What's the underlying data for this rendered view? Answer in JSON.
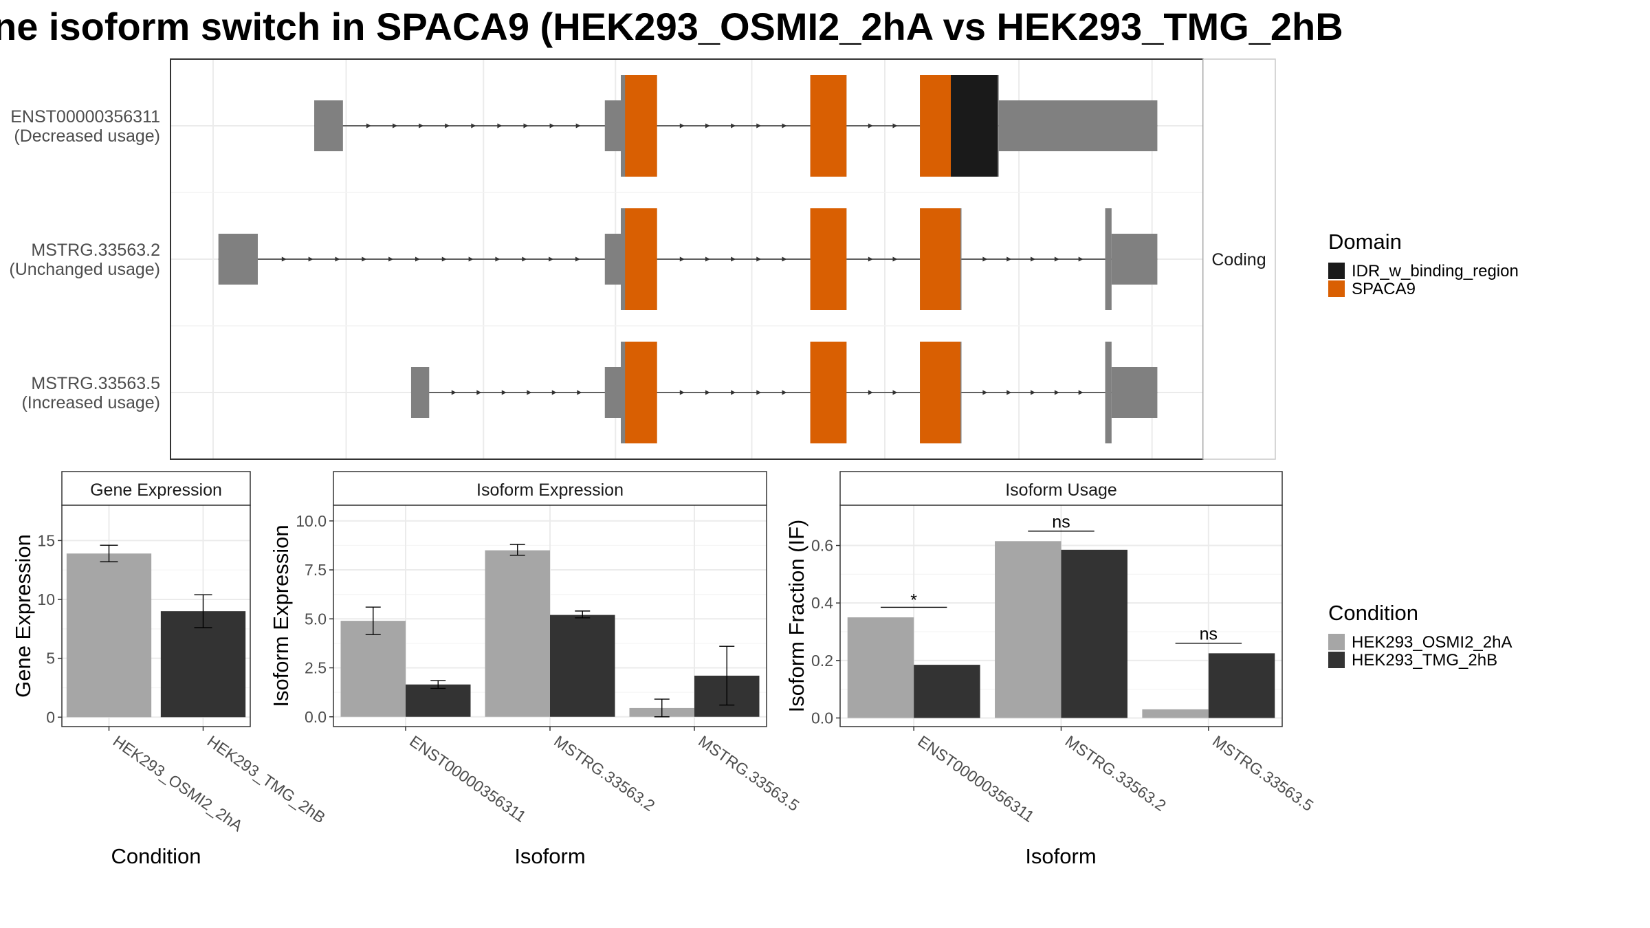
{
  "title": "ne isoform switch in SPACA9 (HEK293_OSMI2_2hA vs HEK293_TMG_2hB",
  "colors": {
    "utr": "#808080",
    "orf": "#808080",
    "spaca9": "#D95F02",
    "idr": "#1A1A1A",
    "cond_a": "#A6A6A6",
    "cond_b": "#333333",
    "intron": "#333333",
    "grid": "#ebebeb",
    "panel_border": "#333333"
  },
  "transcript_panel": {
    "strip_label": "Coding",
    "transcripts": [
      {
        "id": "ENST00000356311",
        "usage": "(Decreased usage)",
        "utr_exons": [
          [
            295,
            322
          ],
          [
            568,
            583
          ],
          [
            938,
            1087
          ]
        ],
        "cds_exons": [
          [
            583,
            617
          ],
          [
            761,
            795
          ],
          [
            864,
            938
          ]
        ],
        "domains": [
          {
            "domain": "SPACA9",
            "start": 587,
            "end": 617
          },
          {
            "domain": "SPACA9",
            "start": 761,
            "end": 795
          },
          {
            "domain": "SPACA9",
            "start": 864,
            "end": 893
          },
          {
            "domain": "IDR_w_binding_region",
            "start": 893,
            "end": 937
          }
        ]
      },
      {
        "id": "MSTRG.33563.2",
        "usage": "(Unchanged usage)",
        "utr_exons": [
          [
            205,
            242
          ],
          [
            568,
            583
          ],
          [
            1044,
            1087
          ]
        ],
        "cds_exons": [
          [
            583,
            617
          ],
          [
            761,
            795
          ],
          [
            864,
            903
          ],
          [
            1038,
            1044
          ]
        ],
        "domains": [
          {
            "domain": "SPACA9",
            "start": 587,
            "end": 617
          },
          {
            "domain": "SPACA9",
            "start": 761,
            "end": 795
          },
          {
            "domain": "SPACA9",
            "start": 864,
            "end": 902
          }
        ]
      },
      {
        "id": "MSTRG.33563.5",
        "usage": "(Increased usage)",
        "utr_exons": [
          [
            386,
            403
          ],
          [
            568,
            583
          ],
          [
            1044,
            1087
          ]
        ],
        "cds_exons": [
          [
            583,
            617
          ],
          [
            761,
            795
          ],
          [
            864,
            903
          ],
          [
            1038,
            1044
          ]
        ],
        "domains": [
          {
            "domain": "SPACA9",
            "start": 587,
            "end": 617
          },
          {
            "domain": "SPACA9",
            "start": 761,
            "end": 795
          },
          {
            "domain": "SPACA9",
            "start": 864,
            "end": 902
          }
        ]
      }
    ]
  },
  "legends": {
    "domain": {
      "title": "Domain",
      "entries": [
        "IDR_w_binding_region",
        "SPACA9"
      ]
    },
    "condition": {
      "title": "Condition",
      "entries": [
        "HEK293_OSMI2_2hA",
        "HEK293_TMG_2hB"
      ]
    }
  },
  "chart_data": [
    {
      "type": "bar",
      "title": "Gene Expression",
      "xlabel": "Condition",
      "ylabel": "Gene Expression",
      "categories": [
        "HEK293_OSMI2_2hA",
        "HEK293_TMG_2hB"
      ],
      "values": [
        13.9,
        9.0
      ],
      "error_low": [
        13.2,
        7.6
      ],
      "error_high": [
        14.6,
        10.4
      ],
      "ylim": [
        -0.8,
        18.0
      ],
      "yticks": [
        0,
        5,
        10,
        15
      ]
    },
    {
      "type": "bar",
      "title": "Isoform Expression",
      "xlabel": "Isoform",
      "ylabel": "Isoform Expression",
      "categories": [
        "ENST00000356311",
        "MSTRG.33563.2",
        "MSTRG.33563.5"
      ],
      "series": [
        {
          "name": "HEK293_OSMI2_2hA",
          "values": [
            4.9,
            8.5,
            0.45
          ],
          "error_low": [
            4.2,
            8.25,
            0.0
          ],
          "error_high": [
            5.6,
            8.8,
            0.9
          ]
        },
        {
          "name": "HEK293_TMG_2hB",
          "values": [
            1.65,
            5.2,
            2.1
          ],
          "error_low": [
            1.45,
            5.05,
            0.6
          ],
          "error_high": [
            1.85,
            5.4,
            3.6
          ]
        }
      ],
      "ylim": [
        -0.5,
        10.8
      ],
      "yticks": [
        0.0,
        2.5,
        5.0,
        7.5,
        10.0
      ]
    },
    {
      "type": "bar",
      "title": "Isoform Usage",
      "xlabel": "Isoform",
      "ylabel": "Isoform Fraction (IF)",
      "categories": [
        "ENST00000356311",
        "MSTRG.33563.2",
        "MSTRG.33563.5"
      ],
      "series": [
        {
          "name": "HEK293_OSMI2_2hA",
          "values": [
            0.35,
            0.615,
            0.03
          ]
        },
        {
          "name": "HEK293_TMG_2hB",
          "values": [
            0.185,
            0.585,
            0.225
          ]
        }
      ],
      "significance": [
        {
          "label": "*",
          "line_y": 0.385
        },
        {
          "label": "ns",
          "line_y": 0.65
        },
        {
          "label": "ns",
          "line_y": 0.26
        }
      ],
      "ylim": [
        -0.03,
        0.74
      ],
      "yticks": [
        0.0,
        0.2,
        0.4,
        0.6
      ]
    }
  ]
}
